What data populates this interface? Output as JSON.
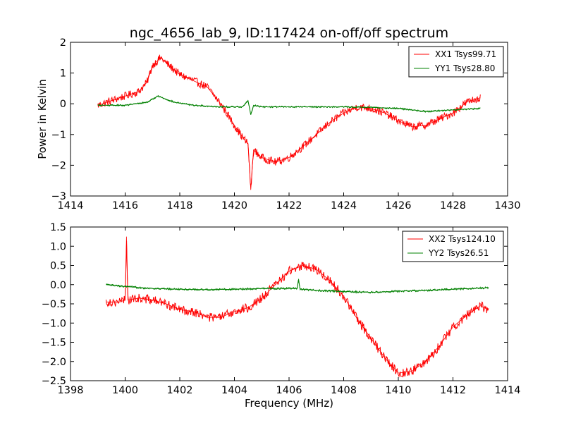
{
  "chart_data": [
    {
      "type": "line",
      "title": "ngc_4656_lab_9, ID:117424 on-off/off spectrum",
      "xlabel": "",
      "ylabel": "Power in Kelvin",
      "xlim": [
        1414,
        1430
      ],
      "ylim": [
        -3,
        2
      ],
      "xticks": [
        "1414",
        "1416",
        "1418",
        "1420",
        "1422",
        "1424",
        "1426",
        "1428",
        "1430"
      ],
      "yticks": [
        "2",
        "1",
        "0",
        "−1",
        "−2",
        "−3"
      ],
      "legend_position": "top-right",
      "series": [
        {
          "name": "XX1 Tsys99.71",
          "color": "#ff0000",
          "x": [
            1415.0,
            1415.5,
            1416.0,
            1416.5,
            1416.8,
            1417.0,
            1417.3,
            1417.6,
            1418.0,
            1418.5,
            1419.0,
            1419.5,
            1420.0,
            1420.3,
            1420.5,
            1420.6,
            1420.7,
            1421.0,
            1421.5,
            1422.0,
            1422.5,
            1423.0,
            1423.5,
            1424.0,
            1424.5,
            1425.0,
            1425.5,
            1426.0,
            1426.5,
            1427.0,
            1427.5,
            1428.0,
            1428.5,
            1429.0
          ],
          "y": [
            -0.05,
            0.1,
            0.25,
            0.4,
            0.7,
            1.25,
            1.5,
            1.25,
            0.95,
            0.75,
            0.55,
            0.0,
            -0.7,
            -1.1,
            -1.3,
            -2.8,
            -1.5,
            -1.75,
            -1.9,
            -1.75,
            -1.4,
            -1.0,
            -0.6,
            -0.3,
            -0.1,
            -0.15,
            -0.3,
            -0.55,
            -0.75,
            -0.7,
            -0.5,
            -0.3,
            0.05,
            0.2
          ]
        },
        {
          "name": "YY1 Tsys28.80",
          "color": "#008000",
          "x": [
            1415.0,
            1416.0,
            1416.8,
            1417.2,
            1417.8,
            1418.5,
            1419.5,
            1420.3,
            1420.5,
            1420.6,
            1420.7,
            1421.0,
            1422.0,
            1423.0,
            1424.0,
            1425.0,
            1426.0,
            1427.0,
            1428.0,
            1429.0
          ],
          "y": [
            -0.05,
            -0.05,
            0.05,
            0.25,
            0.05,
            -0.05,
            -0.1,
            -0.1,
            0.1,
            -0.35,
            -0.05,
            -0.1,
            -0.1,
            -0.1,
            -0.1,
            -0.12,
            -0.15,
            -0.25,
            -0.2,
            -0.15
          ]
        }
      ]
    },
    {
      "type": "line",
      "title": "",
      "xlabel": "Frequency (MHz)",
      "ylabel": "",
      "xlim": [
        1398,
        1414
      ],
      "ylim": [
        -2.5,
        1.5
      ],
      "xticks": [
        "1398",
        "1400",
        "1402",
        "1404",
        "1406",
        "1408",
        "1410",
        "1412",
        "1414"
      ],
      "yticks": [
        "1.5",
        "1.0",
        "0.5",
        "0.0",
        "−0.5",
        "−1.0",
        "−1.5",
        "−2.0",
        "−2.5"
      ],
      "legend_position": "top-right",
      "series": [
        {
          "name": "XX2 Tsys124.10",
          "color": "#ff0000",
          "x": [
            1399.3,
            1399.8,
            1400.0,
            1400.05,
            1400.1,
            1400.5,
            1401.0,
            1401.5,
            1402.0,
            1402.5,
            1403.0,
            1403.5,
            1404.0,
            1404.5,
            1405.0,
            1405.5,
            1406.0,
            1406.5,
            1407.0,
            1407.5,
            1408.0,
            1408.5,
            1409.0,
            1409.5,
            1410.0,
            1410.5,
            1411.0,
            1411.5,
            1412.0,
            1412.5,
            1413.0,
            1413.3
          ],
          "y": [
            -0.45,
            -0.45,
            -0.4,
            1.25,
            -0.4,
            -0.35,
            -0.4,
            -0.5,
            -0.65,
            -0.7,
            -0.85,
            -0.85,
            -0.7,
            -0.6,
            -0.35,
            0.0,
            0.35,
            0.5,
            0.4,
            0.1,
            -0.3,
            -0.9,
            -1.4,
            -1.9,
            -2.3,
            -2.25,
            -2.0,
            -1.6,
            -1.1,
            -0.8,
            -0.55,
            -0.65
          ]
        },
        {
          "name": "YY2 Tsys26.51",
          "color": "#008000",
          "x": [
            1399.3,
            1400.0,
            1401.0,
            1402.0,
            1403.0,
            1404.0,
            1405.0,
            1406.0,
            1406.3,
            1406.35,
            1406.4,
            1407.0,
            1408.0,
            1409.0,
            1410.0,
            1411.0,
            1412.0,
            1413.3
          ],
          "y": [
            0.0,
            -0.05,
            -0.1,
            -0.12,
            -0.13,
            -0.12,
            -0.1,
            -0.1,
            -0.1,
            0.15,
            -0.12,
            -0.15,
            -0.18,
            -0.2,
            -0.17,
            -0.15,
            -0.12,
            -0.08
          ]
        }
      ]
    }
  ]
}
